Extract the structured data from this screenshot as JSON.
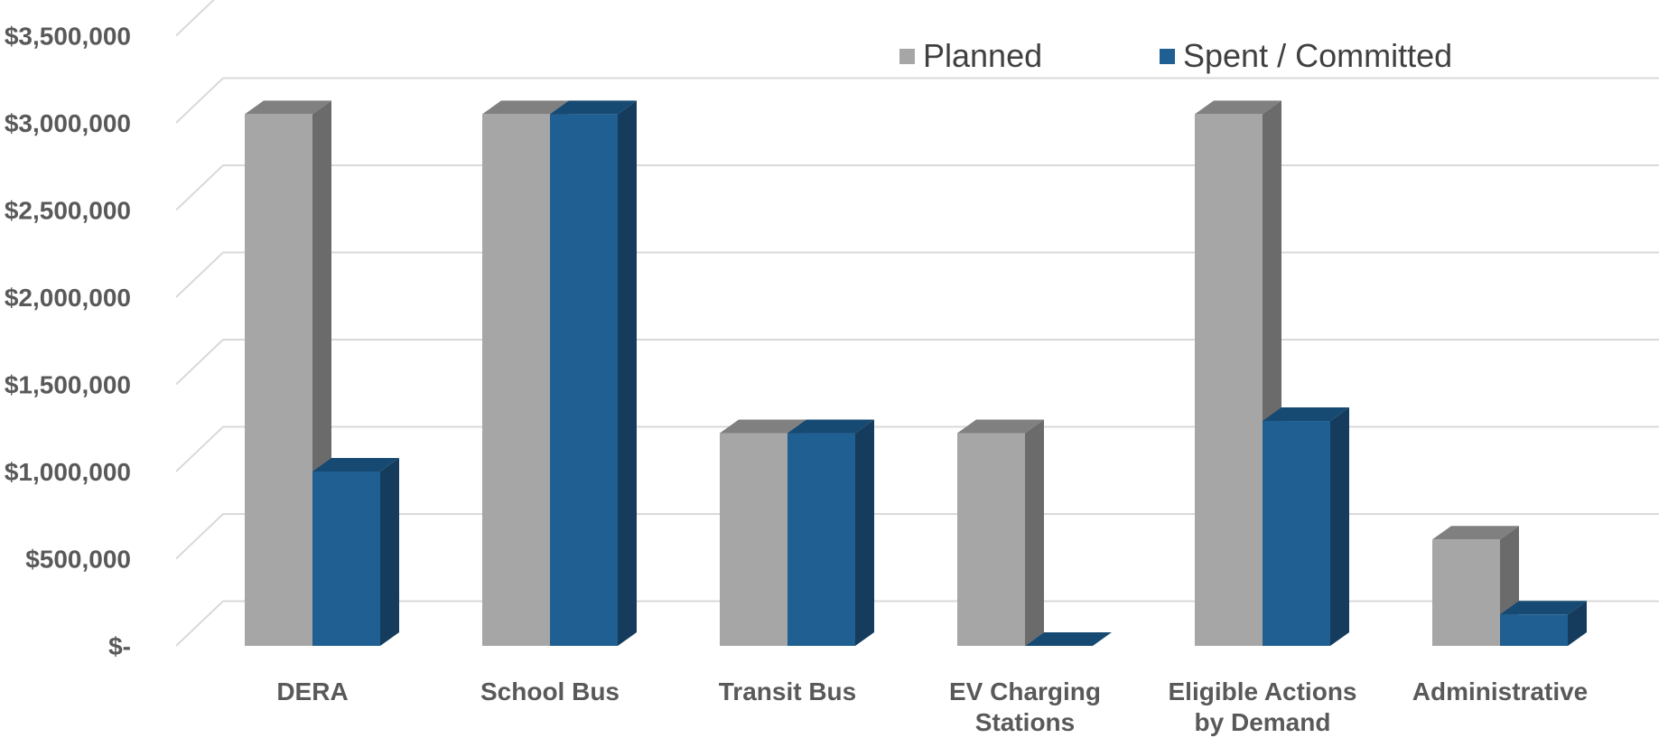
{
  "chart_data": {
    "type": "bar",
    "title": "",
    "xlabel": "",
    "ylabel": "",
    "categories": [
      "DERA",
      "School Bus",
      "Transit Bus",
      "EV Charging Stations",
      "Eligible Actions by Demand",
      "Administrative"
    ],
    "category_label_lines": [
      [
        "DERA"
      ],
      [
        "School Bus"
      ],
      [
        "Transit Bus"
      ],
      [
        "EV Charging",
        "Stations"
      ],
      [
        "Eligible Actions",
        "by Demand"
      ],
      [
        "Administrative"
      ]
    ],
    "series": [
      {
        "name": "Planned",
        "values": [
          3050000,
          3050000,
          1220000,
          1220000,
          3050000,
          610000
        ]
      },
      {
        "name": "Spent / Committed",
        "values": [
          1000000,
          3050000,
          1220000,
          0,
          1290000,
          180000
        ]
      }
    ],
    "ylim": [
      0,
      3500000
    ],
    "yticks": [
      0,
      500000,
      1000000,
      1500000,
      2000000,
      2500000,
      3000000,
      3500000
    ],
    "ytick_labels": [
      "$-",
      "$500,000",
      "$1,000,000",
      "$1,500,000",
      "$2,000,000",
      "$2,500,000",
      "$3,000,000",
      "$3,500,000"
    ],
    "grid": true,
    "style_3d": true,
    "legend_position": "top-right",
    "colors": {
      "Planned": {
        "front": "#a6a6a6",
        "top": "#808080",
        "side": "#6b6b6b"
      },
      "Spent / Committed": {
        "front": "#1f5f91",
        "top": "#174a72",
        "side": "#153c5c"
      },
      "grid": "#d9d9d9",
      "text": "#595959"
    }
  }
}
